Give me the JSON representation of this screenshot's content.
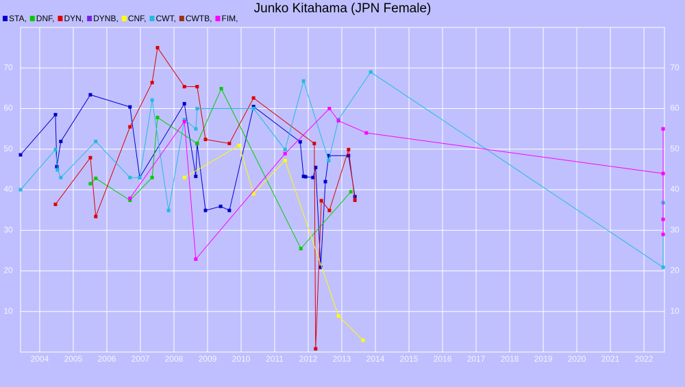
{
  "chart_data": {
    "type": "line",
    "title": "Junko Kitahama (JPN Female)",
    "xlim": [
      2003.43,
      2022.61
    ],
    "ylim": [
      0,
      80
    ],
    "xticks": [
      2004,
      2005,
      2006,
      2007,
      2008,
      2009,
      2010,
      2011,
      2012,
      2013,
      2014,
      2015,
      2016,
      2017,
      2018,
      2019,
      2020,
      2021,
      2022
    ],
    "yticks": [
      10,
      20,
      30,
      40,
      50,
      60,
      70
    ],
    "grid": true,
    "series": [
      {
        "name": "STA,",
        "color": "#0000cc",
        "x": [
          2003.43,
          2004.47,
          2004.51,
          2004.63,
          2005.51,
          2006.69,
          2006.98,
          2008.31,
          2008.65,
          2008.69,
          2008.94,
          2009.39,
          2009.65,
          2010.37,
          2011.76,
          2011.86,
          2011.92,
          2012.14,
          2012.22,
          2012.37,
          2012.51,
          2012.61,
          2013.2,
          2013.39
        ],
        "values": [
          48.6,
          58.5,
          45.7,
          51.9,
          63.4,
          60.4,
          43.0,
          61.2,
          43.3,
          51.4,
          34.9,
          35.9,
          34.9,
          60.5,
          51.8,
          43.3,
          43.2,
          43.0,
          45.5,
          20.9,
          42.0,
          48.4,
          48.4,
          38.3
        ]
      },
      {
        "name": "DNF,",
        "color": "#00cc00",
        "x": [
          2005.51,
          2005.67,
          2006.69,
          2007.35,
          2007.51,
          2008.69,
          2009.41,
          2011.78,
          2013.27
        ],
        "values": [
          41.5,
          42.8,
          37.4,
          43.0,
          57.8,
          51.4,
          64.9,
          25.5,
          39.5
        ]
      },
      {
        "name": "DYN,",
        "color": "#dd0000",
        "x": [
          2004.47,
          2005.51,
          2005.67,
          2006.69,
          2007.35,
          2007.51,
          2008.31,
          2008.69,
          2008.94,
          2009.65,
          2010.37,
          2012.18,
          2012.22,
          2012.39,
          2012.63,
          2013.2,
          2013.39
        ],
        "values": [
          36.4,
          47.9,
          33.4,
          55.5,
          66.4,
          75.0,
          65.4,
          65.4,
          52.4,
          51.4,
          62.6,
          51.4,
          0.8,
          37.3,
          34.9,
          49.9,
          37.4
        ]
      },
      {
        "name": "DYNB,",
        "color": "#7722ee",
        "x": [],
        "values": []
      },
      {
        "name": "CNF,",
        "color": "#ffff00",
        "x": [
          2008.31,
          2009.94,
          2010.37,
          2011.31,
          2012.9,
          2013.63
        ],
        "values": [
          43.0,
          50.9,
          39.0,
          47.2,
          8.9,
          2.9
        ]
      },
      {
        "name": "CWT,",
        "color": "#22bbdd",
        "x": [
          2003.43,
          2004.47,
          2004.53,
          2004.63,
          2005.67,
          2006.69,
          2006.98,
          2007.35,
          2007.84,
          2008.31,
          2008.65,
          2008.69,
          2010.37,
          2011.31,
          2011.86,
          2012.61,
          2012.9,
          2013.86,
          2022.57,
          2022.57
        ],
        "values": [
          40.0,
          49.9,
          44.9,
          43.0,
          51.9,
          43.0,
          43.0,
          62.1,
          34.9,
          57.3,
          55.0,
          60.0,
          60.0,
          49.9,
          66.8,
          47.2,
          57.3,
          69.0,
          20.9,
          36.8
        ]
      },
      {
        "name": "CWTB,",
        "color": "#993311",
        "x": [],
        "values": []
      },
      {
        "name": "FIM,",
        "color": "#ff00ff",
        "x": [
          2006.69,
          2008.31,
          2008.65,
          2011.31,
          2012.63,
          2012.9,
          2013.73,
          2022.57,
          2022.57,
          2022.57,
          2022.57
        ],
        "values": [
          37.9,
          56.8,
          22.9,
          48.9,
          60.0,
          57.0,
          54.0,
          44.0,
          55.0,
          32.7,
          29.0
        ]
      }
    ]
  }
}
